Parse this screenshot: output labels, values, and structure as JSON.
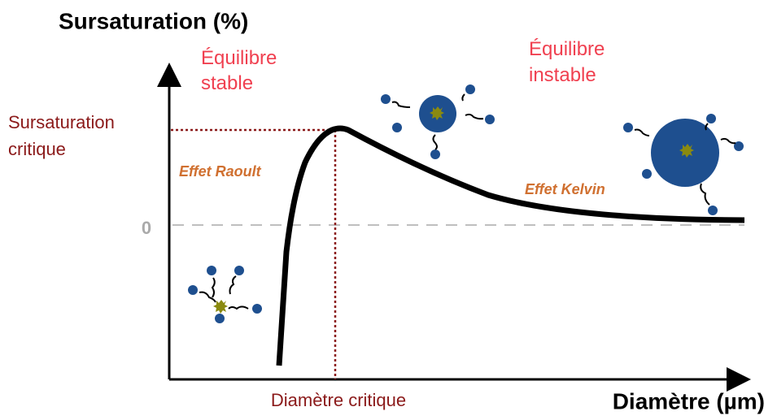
{
  "y_axis_title": "Sursaturation (%)",
  "x_axis_title": "Diamètre (µm)",
  "zero_label": "0",
  "critical_supersaturation": [
    "Sursaturation",
    "critique"
  ],
  "critical_diameter": "Diamètre critique",
  "stable_equilibrium": [
    "Équilibre",
    "stable"
  ],
  "unstable_equilibrium": [
    "Équilibre",
    "instable"
  ],
  "raoult_effect": "Effet Raoult",
  "kelvin_effect": "Effet Kelvin"
}
